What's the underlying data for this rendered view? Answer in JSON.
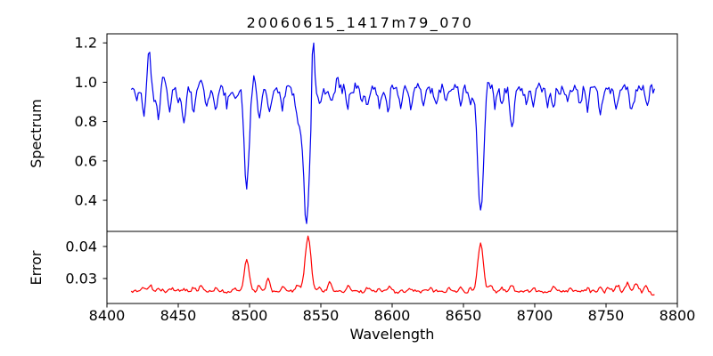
{
  "chart_data": {
    "type": "line",
    "title": "20060615_1417m79_070",
    "xlabel": "Wavelength",
    "background": "#ffffff",
    "axes_color": "#000000",
    "xlim": [
      8400,
      8800
    ],
    "x_ticks": [
      8400,
      8450,
      8500,
      8550,
      8600,
      8650,
      8700,
      8750,
      8800
    ],
    "x_tick_labels": [
      "8400",
      "8450",
      "8500",
      "8550",
      "8600",
      "8650",
      "8700",
      "8750",
      "8800"
    ],
    "data_x_start": 8417,
    "data_x_end": 8784,
    "sample_step": 1,
    "major_absorption_lines": [
      8498,
      8542,
      8662
    ],
    "panels": [
      {
        "name": "spectrum",
        "ylabel": "Spectrum",
        "line_color": "#0000ee",
        "ylim": [
          0.242,
          1.246
        ],
        "y_ticks": [
          0.4,
          0.6,
          0.8,
          1.0,
          1.2
        ],
        "y_tick_labels": [
          "0.4",
          "0.6",
          "0.8",
          "1.0",
          "1.2"
        ],
        "continuum": 0.968,
        "noise_amplitude": 0.018,
        "features": [
          {
            "x": 8421,
            "w": 1.0,
            "a": -0.05
          },
          {
            "x": 8426,
            "w": 1.2,
            "a": -0.13
          },
          {
            "x": 8429.5,
            "w": 1.0,
            "a": 0.21
          },
          {
            "x": 8433,
            "w": 0.8,
            "a": -0.07
          },
          {
            "x": 8436,
            "w": 1.2,
            "a": -0.14
          },
          {
            "x": 8440,
            "w": 1.0,
            "a": 0.06
          },
          {
            "x": 8444,
            "w": 1.2,
            "a": -0.11
          },
          {
            "x": 8450,
            "w": 1.0,
            "a": -0.06
          },
          {
            "x": 8454,
            "w": 1.3,
            "a": -0.17
          },
          {
            "x": 8461,
            "w": 1.1,
            "a": -0.12
          },
          {
            "x": 8466,
            "w": 1.0,
            "a": 0.06
          },
          {
            "x": 8470,
            "w": 1.1,
            "a": -0.09
          },
          {
            "x": 8476,
            "w": 1.1,
            "a": -0.11
          },
          {
            "x": 8484,
            "w": 1.0,
            "a": -0.08
          },
          {
            "x": 8490,
            "w": 1.0,
            "a": -0.06
          },
          {
            "x": 8498,
            "w": 1.7,
            "a": -0.5
          },
          {
            "x": 8503,
            "w": 0.9,
            "a": 0.05
          },
          {
            "x": 8507,
            "w": 1.2,
            "a": -0.16
          },
          {
            "x": 8514,
            "w": 1.2,
            "a": -0.13
          },
          {
            "x": 8523,
            "w": 1.2,
            "a": -0.1
          },
          {
            "x": 8534,
            "w": 1.8,
            "a": -0.15
          },
          {
            "x": 8540,
            "w": 2.3,
            "a": -0.67
          },
          {
            "x": 8544.5,
            "w": 0.9,
            "a": 0.35
          },
          {
            "x": 8549,
            "w": 1.0,
            "a": -0.08
          },
          {
            "x": 8557,
            "w": 1.0,
            "a": -0.07
          },
          {
            "x": 8562,
            "w": 0.9,
            "a": 0.05
          },
          {
            "x": 8569,
            "w": 1.0,
            "a": -0.1
          },
          {
            "x": 8579,
            "w": 1.0,
            "a": -0.08
          },
          {
            "x": 8583,
            "w": 1.0,
            "a": -0.09
          },
          {
            "x": 8591,
            "w": 1.0,
            "a": -0.1
          },
          {
            "x": 8597,
            "w": 1.1,
            "a": -0.12
          },
          {
            "x": 8606,
            "w": 1.0,
            "a": -0.08
          },
          {
            "x": 8613,
            "w": 1.1,
            "a": -0.11
          },
          {
            "x": 8622,
            "w": 1.0,
            "a": -0.09
          },
          {
            "x": 8631,
            "w": 1.0,
            "a": -0.08
          },
          {
            "x": 8638,
            "w": 1.0,
            "a": -0.07
          },
          {
            "x": 8648,
            "w": 1.1,
            "a": -0.1
          },
          {
            "x": 8655,
            "w": 1.0,
            "a": -0.11
          },
          {
            "x": 8662,
            "w": 2.1,
            "a": -0.63
          },
          {
            "x": 8667,
            "w": 0.9,
            "a": 0.06
          },
          {
            "x": 8672,
            "w": 1.0,
            "a": -0.08
          },
          {
            "x": 8677,
            "w": 1.0,
            "a": -0.09
          },
          {
            "x": 8684,
            "w": 1.4,
            "a": -0.2
          },
          {
            "x": 8694,
            "w": 1.0,
            "a": -0.08
          },
          {
            "x": 8699,
            "w": 1.0,
            "a": -0.09
          },
          {
            "x": 8709,
            "w": 1.0,
            "a": -0.08
          },
          {
            "x": 8713,
            "w": 1.0,
            "a": -0.1
          },
          {
            "x": 8723,
            "w": 1.0,
            "a": -0.08
          },
          {
            "x": 8732,
            "w": 1.0,
            "a": -0.09
          },
          {
            "x": 8737,
            "w": 1.0,
            "a": -0.1
          },
          {
            "x": 8746,
            "w": 1.2,
            "a": -0.13
          },
          {
            "x": 8757,
            "w": 1.0,
            "a": -0.1
          },
          {
            "x": 8768,
            "w": 1.3,
            "a": -0.12
          },
          {
            "x": 8779,
            "w": 1.0,
            "a": -0.08
          }
        ]
      },
      {
        "name": "error",
        "ylabel": "Error",
        "line_color": "#ff0000",
        "ylim": [
          0.0222,
          0.0447
        ],
        "y_ticks": [
          0.03,
          0.04
        ],
        "y_tick_labels": [
          "0.03",
          "0.04"
        ],
        "continuum": 0.026,
        "noise_amplitude": 0.00038,
        "features": [
          {
            "x": 8426,
            "w": 1.4,
            "a": 0.001
          },
          {
            "x": 8430,
            "w": 1.2,
            "a": 0.0022
          },
          {
            "x": 8436,
            "w": 1.3,
            "a": 0.001
          },
          {
            "x": 8445,
            "w": 1.2,
            "a": 0.0008
          },
          {
            "x": 8454,
            "w": 1.3,
            "a": 0.001
          },
          {
            "x": 8461,
            "w": 1.2,
            "a": 0.0012
          },
          {
            "x": 8466,
            "w": 1.2,
            "a": 0.002
          },
          {
            "x": 8476,
            "w": 1.2,
            "a": 0.0009
          },
          {
            "x": 8490,
            "w": 1.2,
            "a": 0.0008
          },
          {
            "x": 8498,
            "w": 1.7,
            "a": 0.01
          },
          {
            "x": 8507,
            "w": 1.2,
            "a": 0.0018
          },
          {
            "x": 8513,
            "w": 1.2,
            "a": 0.0042
          },
          {
            "x": 8523,
            "w": 1.2,
            "a": 0.0012
          },
          {
            "x": 8534,
            "w": 1.6,
            "a": 0.002
          },
          {
            "x": 8541,
            "w": 2.0,
            "a": 0.0172
          },
          {
            "x": 8549,
            "w": 1.1,
            "a": 0.0015
          },
          {
            "x": 8556,
            "w": 1.2,
            "a": 0.003
          },
          {
            "x": 8569,
            "w": 1.2,
            "a": 0.0018
          },
          {
            "x": 8583,
            "w": 1.1,
            "a": 0.001
          },
          {
            "x": 8591,
            "w": 1.1,
            "a": 0.001
          },
          {
            "x": 8598,
            "w": 1.2,
            "a": 0.0012
          },
          {
            "x": 8613,
            "w": 1.1,
            "a": 0.001
          },
          {
            "x": 8627,
            "w": 1.1,
            "a": 0.0008
          },
          {
            "x": 8640,
            "w": 1.1,
            "a": 0.0008
          },
          {
            "x": 8648,
            "w": 1.1,
            "a": 0.001
          },
          {
            "x": 8655,
            "w": 1.1,
            "a": 0.0012
          },
          {
            "x": 8662,
            "w": 1.9,
            "a": 0.015
          },
          {
            "x": 8669,
            "w": 1.1,
            "a": 0.002
          },
          {
            "x": 8677,
            "w": 1.1,
            "a": 0.0012
          },
          {
            "x": 8684,
            "w": 1.3,
            "a": 0.0018
          },
          {
            "x": 8699,
            "w": 1.1,
            "a": 0.001
          },
          {
            "x": 8713,
            "w": 1.1,
            "a": 0.001
          },
          {
            "x": 8725,
            "w": 1.1,
            "a": 0.0008
          },
          {
            "x": 8737,
            "w": 1.1,
            "a": 0.001
          },
          {
            "x": 8746,
            "w": 1.2,
            "a": 0.0014
          },
          {
            "x": 8752,
            "w": 1.1,
            "a": 0.0012
          },
          {
            "x": 8758,
            "w": 1.2,
            "a": 0.002
          },
          {
            "x": 8765,
            "w": 1.3,
            "a": 0.0028
          },
          {
            "x": 8771,
            "w": 1.2,
            "a": 0.0024
          },
          {
            "x": 8778,
            "w": 1.2,
            "a": 0.0014
          },
          {
            "x": 8783,
            "w": 1.5,
            "a": -0.0012
          }
        ]
      }
    ]
  }
}
